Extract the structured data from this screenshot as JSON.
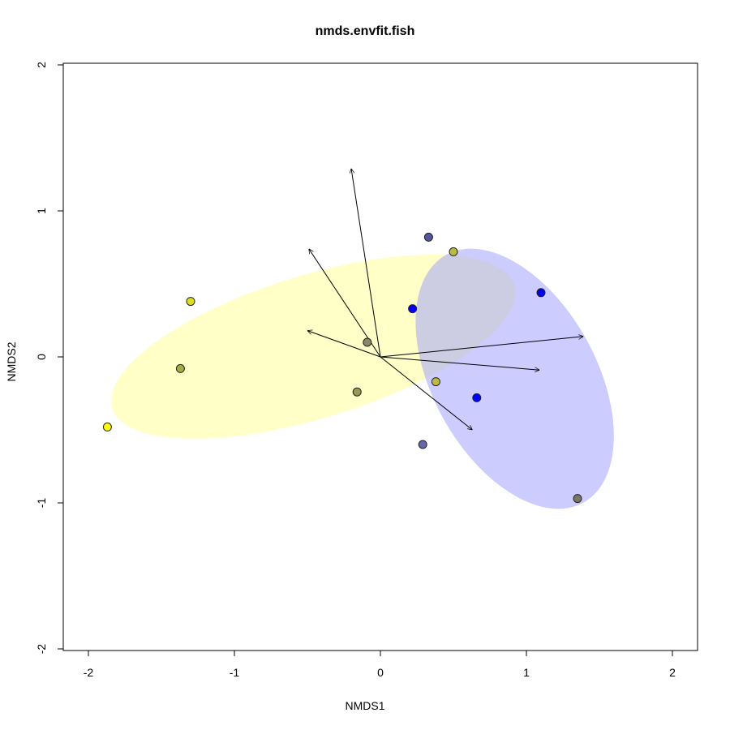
{
  "chart_data": {
    "type": "scatter",
    "title": "nmds.envfit.fish",
    "xlabel": "NMDS1",
    "ylabel": "NMDS2",
    "xlim": [
      -2.2,
      2.2
    ],
    "ylim": [
      -2,
      2
    ],
    "x_ticks": [
      "-2",
      "-1",
      "0",
      "1",
      "2"
    ],
    "y_ticks": [
      "-2",
      "-1",
      "0",
      "1",
      "2"
    ],
    "grid": false,
    "points": [
      {
        "x": -1.87,
        "y": -0.48,
        "color": "#ffff00"
      },
      {
        "x": -1.3,
        "y": 0.38,
        "color": "#dddd22"
      },
      {
        "x": -1.37,
        "y": -0.08,
        "color": "#aaaa44"
      },
      {
        "x": -0.16,
        "y": -0.24,
        "color": "#999955"
      },
      {
        "x": -0.09,
        "y": 0.1,
        "color": "#888866"
      },
      {
        "x": 0.33,
        "y": 0.82,
        "color": "#555599"
      },
      {
        "x": 0.5,
        "y": 0.72,
        "color": "#bbbb44"
      },
      {
        "x": 0.22,
        "y": 0.33,
        "color": "#0000ff"
      },
      {
        "x": 1.1,
        "y": 0.44,
        "color": "#0000ee"
      },
      {
        "x": 0.38,
        "y": -0.17,
        "color": "#bbbb44"
      },
      {
        "x": 0.66,
        "y": -0.28,
        "color": "#0000ff"
      },
      {
        "x": 0.29,
        "y": -0.6,
        "color": "#6666aa"
      },
      {
        "x": 1.35,
        "y": -0.97,
        "color": "#777766"
      }
    ],
    "vectors": [
      {
        "x": -0.2,
        "y": 1.29
      },
      {
        "x": -0.49,
        "y": 0.74
      },
      {
        "x": -0.5,
        "y": 0.18
      },
      {
        "x": 1.39,
        "y": 0.14
      },
      {
        "x": 1.09,
        "y": -0.09
      },
      {
        "x": 0.63,
        "y": -0.5
      }
    ],
    "ellipses": [
      {
        "cx": -0.46,
        "cy": 0.07,
        "rx": 1.44,
        "ry": 0.49,
        "angle_deg": 17,
        "color": "#ffff99",
        "opacity": 0.55
      },
      {
        "cx": 0.92,
        "cy": -0.15,
        "rx": 0.56,
        "ry": 0.97,
        "angle_deg": 29,
        "color": "#9999ff",
        "opacity": 0.5
      }
    ]
  }
}
